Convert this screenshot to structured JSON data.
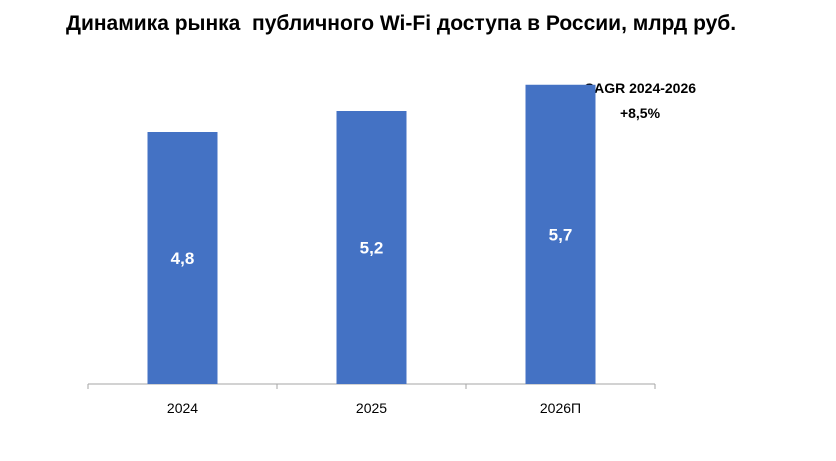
{
  "chart_data": {
    "type": "bar",
    "title": "Динамика рынка  публичного Wi-Fi доступа в России, млрд руб.",
    "categories": [
      "2024",
      "2025",
      "2026П"
    ],
    "values": [
      4.8,
      5.2,
      5.7
    ],
    "value_labels": [
      "4,8",
      "5,2",
      "5,7"
    ],
    "ylim": [
      0,
      6.4
    ],
    "grid": false,
    "bar_color": "#4472C4",
    "annotation": {
      "line1": "CAGR 2024-2026",
      "line2": "+8,5%"
    }
  }
}
